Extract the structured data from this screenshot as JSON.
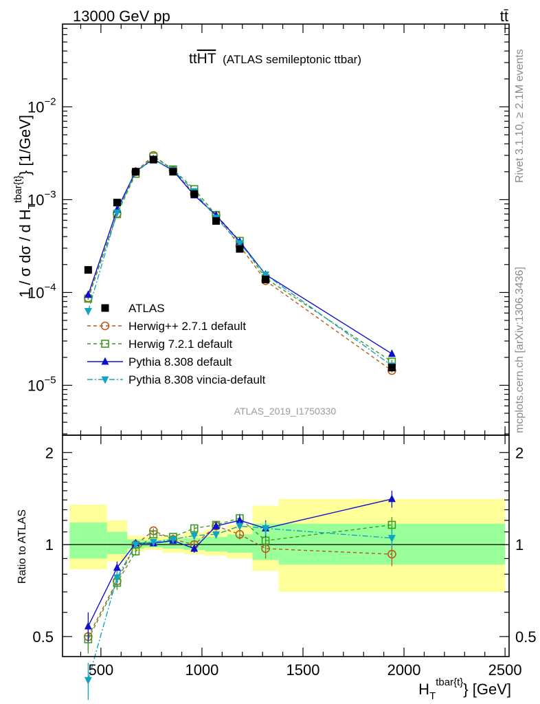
{
  "header": {
    "left": "13000 GeV pp",
    "right": "tt̄"
  },
  "side": {
    "rivet": "Rivet 3.1.10, ≥ 2.1M events",
    "mcplots": "mcplots.cern.ch [arXiv:1306.3436]"
  },
  "chart_data": {
    "type": "line",
    "title": {
      "main": "tt",
      "overline": "HT",
      "sub": "(ATLAS semileptonic ttbar)"
    },
    "analysis": "ATLAS_2019_I1750330",
    "xlabel": {
      "base": "H",
      "sub": "T",
      "sup": "tbar{t}",
      "tail": "} [GeV]"
    },
    "ylabel": {
      "pre": "1 / σ dσ / d H",
      "sub": "T",
      "sup": "tbar{t}",
      "tail": "} [1/GeV]"
    },
    "ratio_ylabel": "Ratio to ATLAS",
    "xlim": [
      310,
      2520
    ],
    "ylim_main": [
      2.9e-06,
      0.078
    ],
    "ylim_ratio": [
      0.43,
      2.28
    ],
    "x_ticks": [
      500,
      1000,
      1500,
      2000,
      2500
    ],
    "x_tick_labels": [
      "500",
      "1000",
      "1500",
      "2000",
      "2500"
    ],
    "y_major": [
      1e-05,
      0.0001,
      0.001,
      0.01
    ],
    "y_major_labels": [
      {
        "base": "10",
        "exp": "−5"
      },
      {
        "base": "10",
        "exp": "−4"
      },
      {
        "base": "10",
        "exp": "−3"
      },
      {
        "base": "10",
        "exp": "−2"
      }
    ],
    "ratio_ticks": [
      0.5,
      1,
      2
    ],
    "ratio_tick_labels": [
      "0.5",
      "1",
      "2"
    ],
    "bins": [
      {
        "lo": 345,
        "hi": 530,
        "x": 437,
        "atlas": 0.000175
      },
      {
        "lo": 530,
        "hi": 630,
        "x": 580,
        "atlas": 0.00093
      },
      {
        "lo": 630,
        "hi": 715,
        "x": 672,
        "atlas": 0.002
      },
      {
        "lo": 715,
        "hi": 805,
        "x": 760,
        "atlas": 0.0027
      },
      {
        "lo": 805,
        "hi": 910,
        "x": 857,
        "atlas": 0.002
      },
      {
        "lo": 910,
        "hi": 1015,
        "x": 962,
        "atlas": 0.00115
      },
      {
        "lo": 1015,
        "hi": 1125,
        "x": 1070,
        "atlas": 0.00059
      },
      {
        "lo": 1125,
        "hi": 1250,
        "x": 1187,
        "atlas": 0.000295
      },
      {
        "lo": 1250,
        "hi": 1380,
        "x": 1315,
        "atlas": 0.000138
      },
      {
        "lo": 1380,
        "hi": 2500,
        "x": 1940,
        "atlas": 1.55e-05
      }
    ],
    "band_yellow": [
      [
        0.83,
        1.35
      ],
      [
        0.88,
        1.2
      ],
      [
        0.95,
        1.07
      ],
      [
        0.96,
        1.06
      ],
      [
        0.94,
        1.07
      ],
      [
        0.93,
        1.1
      ],
      [
        0.92,
        1.12
      ],
      [
        0.9,
        1.16
      ],
      [
        0.82,
        1.34
      ],
      [
        0.7,
        1.41
      ]
    ],
    "band_green": [
      [
        0.9,
        1.18
      ],
      [
        0.93,
        1.1
      ],
      [
        0.97,
        1.04
      ],
      [
        0.98,
        1.03
      ],
      [
        0.97,
        1.04
      ],
      [
        0.96,
        1.05
      ],
      [
        0.95,
        1.06
      ],
      [
        0.94,
        1.08
      ],
      [
        0.89,
        1.17
      ],
      [
        0.86,
        1.17
      ]
    ],
    "series": [
      {
        "name": "ATLAS",
        "color": "#000000",
        "marker": "square",
        "dash": "none",
        "values": [
          0.000175,
          0.00093,
          0.002,
          0.0027,
          0.002,
          0.00115,
          0.00059,
          0.000295,
          0.000138,
          1.55e-05
        ]
      },
      {
        "name": "Herwig++ 2.7.1 default",
        "color": "#b35a1f",
        "marker": "circle-open",
        "dash": "5,4",
        "ratio": [
          0.5,
          0.76,
          1.0,
          1.11,
          1.04,
          1.0,
          1.15,
          1.08,
          0.97,
          0.93
        ],
        "ratio_err": [
          0.05,
          0.04,
          0.03,
          0.02,
          0.02,
          0.03,
          0.03,
          0.04,
          0.07,
          0.08
        ]
      },
      {
        "name": "Herwig 7.2.1 default",
        "color": "#3d9a1f",
        "marker": "square-open",
        "dash": "5,4",
        "ratio": [
          0.49,
          0.75,
          0.95,
          1.08,
          1.06,
          1.13,
          1.16,
          1.22,
          1.03,
          1.16
        ],
        "ratio_err": [
          0.05,
          0.04,
          0.03,
          0.02,
          0.02,
          0.03,
          0.03,
          0.04,
          0.06,
          0.07
        ]
      },
      {
        "name": "Pythia 8.308 default",
        "color": "#1010cc",
        "marker": "triangle-up",
        "dash": "none",
        "ratio": [
          0.54,
          0.84,
          1.01,
          1.01,
          1.03,
          0.97,
          1.15,
          1.2,
          1.13,
          1.41
        ],
        "ratio_err": [
          0.06,
          0.04,
          0.03,
          0.02,
          0.02,
          0.03,
          0.03,
          0.05,
          0.07,
          0.09
        ]
      },
      {
        "name": "Pythia 8.308 vincia-default",
        "color": "#0ea5c0",
        "marker": "triangle-down",
        "dash": "8,3,2,3",
        "ratio": [
          0.36,
          0.78,
          1.0,
          1.02,
          1.04,
          1.07,
          1.08,
          1.15,
          1.13,
          1.05
        ],
        "ratio_err": [
          0.05,
          0.04,
          0.03,
          0.02,
          0.02,
          0.03,
          0.03,
          0.04,
          0.06,
          0.07
        ]
      }
    ]
  }
}
